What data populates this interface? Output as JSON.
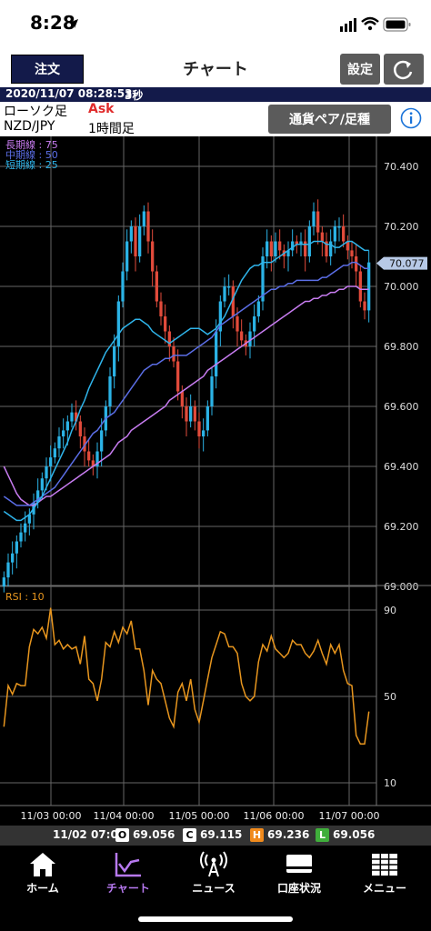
{
  "status": {
    "time": "8:28"
  },
  "nav": {
    "order_label": "注文",
    "title": "チャート",
    "settings_label": "設定"
  },
  "info": {
    "datetime": "2020/11/07 08:28:53",
    "interval": "3秒"
  },
  "pair": {
    "candle_type": "ローソク足",
    "price_type": "Ask",
    "symbol": "NZD/JPY",
    "timeframe": "1時間足",
    "select_label": "通貨ペア/足種"
  },
  "colors": {
    "up": "#2bb3e6",
    "down": "#e24b3b",
    "ma_short": "#2fb4ea",
    "ma_mid": "#5b6ee6",
    "ma_long": "#c77cf0",
    "rsi": "#e8961e",
    "price_tag": "#b7c9e6"
  },
  "chart_data": [
    {
      "type": "candlestick",
      "title": "",
      "legend": [
        {
          "name": "長期線 : 75",
          "color": "#c77cf0"
        },
        {
          "name": "中期線 : 50",
          "color": "#5b6ee6"
        },
        {
          "name": "短期線 : 25",
          "color": "#2fb4ea"
        }
      ],
      "y_ticks": [
        "70.400",
        "70.200",
        "70.000",
        "69.800",
        "69.600",
        "69.400",
        "69.200",
        "69.000"
      ],
      "ylim": [
        69.0,
        70.4
      ],
      "x_ticks": [
        "11/03 00:00",
        "11/04 00:00",
        "11/05 00:00",
        "11/06 00:00",
        "11/07 00:00"
      ],
      "current_price": "70.077",
      "series": [
        {
          "name": "close",
          "values": [
            69.03,
            69.08,
            69.11,
            69.15,
            69.18,
            69.21,
            69.24,
            69.28,
            69.32,
            69.36,
            69.4,
            69.43,
            69.46,
            69.5,
            69.52,
            69.55,
            69.58,
            69.55,
            69.5,
            69.45,
            69.42,
            69.4,
            69.45,
            69.52,
            69.6,
            69.7,
            69.8,
            69.95,
            70.05,
            70.15,
            70.2,
            70.1,
            70.2,
            70.25,
            70.15,
            70.05,
            69.95,
            69.9,
            69.85,
            69.8,
            69.75,
            69.65,
            69.6,
            69.55,
            69.6,
            69.55,
            69.5,
            69.52,
            69.6,
            69.7,
            69.85,
            69.95,
            70.0,
            70.0,
            69.9,
            69.85,
            69.82,
            69.8,
            69.85,
            69.9,
            69.95,
            70.1,
            70.15,
            70.1,
            70.15,
            70.12,
            70.1,
            70.12,
            70.15,
            70.14,
            70.15,
            70.1,
            70.2,
            70.25,
            70.18,
            70.15,
            70.1,
            70.15,
            70.2,
            70.2,
            70.15,
            70.12,
            70.1,
            70.05,
            69.95,
            69.92,
            70.08
          ]
        },
        {
          "name": "長期線 : 75",
          "values": [
            69.4,
            69.37,
            69.34,
            69.31,
            69.29,
            69.28,
            69.27,
            69.27,
            69.28,
            69.29,
            69.3,
            69.3,
            69.31,
            69.32,
            69.33,
            69.34,
            69.35,
            69.36,
            69.37,
            69.38,
            69.39,
            69.4,
            69.41,
            69.42,
            69.43,
            69.44,
            69.46,
            69.48,
            69.49,
            69.5,
            69.52,
            69.53,
            69.54,
            69.55,
            69.56,
            69.57,
            69.58,
            69.59,
            69.6,
            69.62,
            69.63,
            69.64,
            69.65,
            69.66,
            69.67,
            69.68,
            69.69,
            69.7,
            69.72,
            69.73,
            69.74,
            69.75,
            69.76,
            69.77,
            69.78,
            69.79,
            69.8,
            69.81,
            69.82,
            69.83,
            69.84,
            69.85,
            69.86,
            69.87,
            69.88,
            69.89,
            69.9,
            69.91,
            69.92,
            69.93,
            69.94,
            69.95,
            69.95,
            69.96,
            69.96,
            69.97,
            69.97,
            69.98,
            69.98,
            69.99,
            69.99,
            70.0,
            70.0,
            70.0,
            69.99,
            69.99,
            69.99
          ]
        },
        {
          "name": "中期線 : 50",
          "values": [
            69.3,
            69.29,
            69.28,
            69.27,
            69.27,
            69.27,
            69.27,
            69.28,
            69.29,
            69.3,
            69.31,
            69.32,
            69.33,
            69.35,
            69.37,
            69.39,
            69.41,
            69.43,
            69.45,
            69.47,
            69.49,
            69.51,
            69.52,
            69.54,
            69.56,
            69.57,
            69.58,
            69.6,
            69.62,
            69.64,
            69.66,
            69.68,
            69.7,
            69.72,
            69.73,
            69.74,
            69.74,
            69.75,
            69.76,
            69.76,
            69.77,
            69.77,
            69.77,
            69.77,
            69.78,
            69.79,
            69.8,
            69.81,
            69.82,
            69.83,
            69.85,
            69.87,
            69.88,
            69.89,
            69.9,
            69.91,
            69.92,
            69.93,
            69.94,
            69.95,
            69.96,
            69.97,
            69.98,
            69.99,
            69.99,
            70.0,
            70.0,
            70.01,
            70.01,
            70.02,
            70.02,
            70.02,
            70.02,
            70.02,
            70.02,
            70.03,
            70.03,
            70.04,
            70.05,
            70.06,
            70.07,
            70.07,
            70.08,
            70.08,
            70.07,
            70.06,
            70.06
          ]
        },
        {
          "name": "短期線 : 25",
          "values": [
            69.25,
            69.24,
            69.23,
            69.22,
            69.22,
            69.23,
            69.24,
            69.26,
            69.28,
            69.3,
            69.33,
            69.36,
            69.39,
            69.42,
            69.45,
            69.48,
            69.52,
            69.55,
            69.59,
            69.62,
            69.66,
            69.69,
            69.72,
            69.75,
            69.78,
            69.8,
            69.82,
            69.84,
            69.86,
            69.87,
            69.88,
            69.89,
            69.89,
            69.88,
            69.87,
            69.85,
            69.84,
            69.83,
            69.82,
            69.81,
            69.82,
            69.83,
            69.84,
            69.85,
            69.86,
            69.86,
            69.86,
            69.85,
            69.84,
            69.85,
            69.86,
            69.88,
            69.9,
            69.93,
            69.96,
            69.99,
            70.02,
            70.04,
            70.06,
            70.07,
            70.07,
            70.08,
            70.08,
            70.08,
            70.09,
            70.1,
            70.11,
            70.12,
            70.13,
            70.14,
            70.14,
            70.14,
            70.14,
            70.15,
            70.15,
            70.15,
            70.14,
            70.14,
            70.13,
            70.13,
            70.14,
            70.15,
            70.15,
            70.14,
            70.13,
            70.12,
            70.12
          ]
        }
      ]
    },
    {
      "type": "line",
      "title": "RSI : 10",
      "y_ticks": [
        "90",
        "50",
        "10"
      ],
      "ylim": [
        0,
        100
      ],
      "series": [
        {
          "name": "RSI : 10",
          "values": [
            36,
            55,
            51,
            56,
            55,
            55,
            73,
            81,
            79,
            82,
            77,
            91,
            74,
            76,
            72,
            74,
            72,
            73,
            65,
            78,
            58,
            56,
            48,
            58,
            75,
            73,
            80,
            75,
            82,
            79,
            85,
            72,
            72,
            62,
            46,
            62,
            58,
            56,
            48,
            40,
            36,
            52,
            56,
            48,
            58,
            44,
            38,
            48,
            58,
            68,
            74,
            80,
            79,
            73,
            73,
            70,
            56,
            50,
            48,
            50,
            66,
            74,
            71,
            78,
            72,
            70,
            68,
            70,
            76,
            74,
            74,
            70,
            68,
            71,
            76,
            70,
            65,
            74,
            70,
            74,
            62,
            56,
            55,
            32,
            28,
            28,
            43
          ]
        }
      ]
    }
  ],
  "rsi": {
    "label": "RSI : 10",
    "ticks": [
      "90",
      "50",
      "10"
    ]
  },
  "ohlc": {
    "date": "11/02 07:00",
    "O_label": "O",
    "O": "69.056",
    "C_label": "C",
    "C": "69.115",
    "H_label": "H",
    "H": "69.236",
    "L_label": "L",
    "L": "69.056"
  },
  "tabs": [
    {
      "label": "ホーム"
    },
    {
      "label": "チャート"
    },
    {
      "label": "ニュース"
    },
    {
      "label": "口座状況"
    },
    {
      "label": "メニュー"
    }
  ]
}
